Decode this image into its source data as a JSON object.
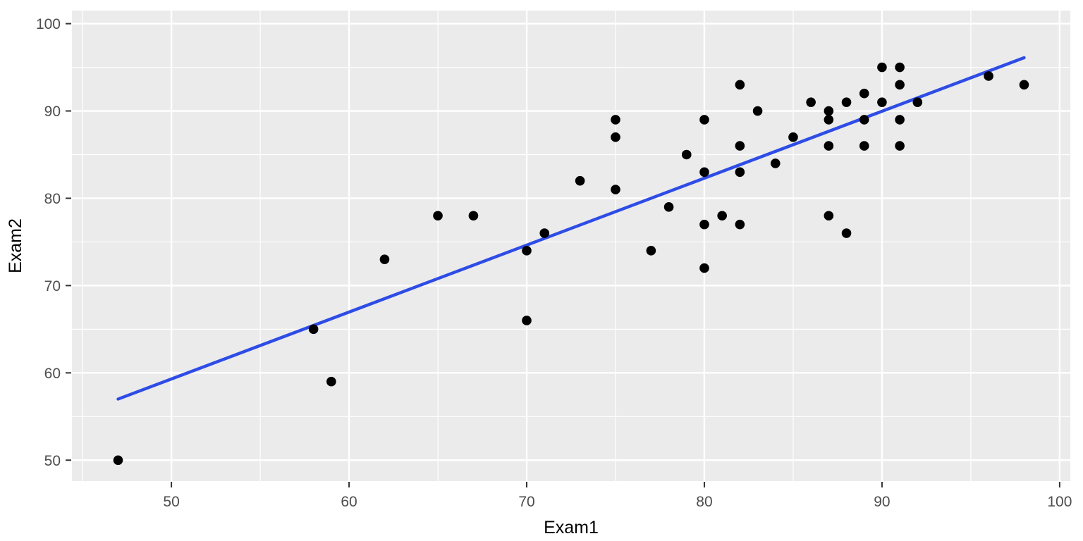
{
  "chart_data": {
    "type": "scatter",
    "title": "",
    "xlabel": "Exam1",
    "ylabel": "Exam2",
    "xlim": [
      44.4,
      100.6
    ],
    "ylim": [
      47.6,
      101.5
    ],
    "x_major_ticks": [
      50,
      60,
      70,
      80,
      90,
      100
    ],
    "y_major_ticks": [
      50,
      60,
      70,
      80,
      90,
      100
    ],
    "x_minor_ticks": [
      45,
      55,
      65,
      75,
      85,
      95
    ],
    "y_minor_ticks": [
      55,
      65,
      75,
      85,
      95
    ],
    "grid": "major-and-minor",
    "legend": "none",
    "points": [
      [
        47,
        50
      ],
      [
        58,
        65
      ],
      [
        59,
        59
      ],
      [
        62,
        73
      ],
      [
        65,
        78
      ],
      [
        67,
        78
      ],
      [
        70,
        66
      ],
      [
        70,
        74
      ],
      [
        71,
        76
      ],
      [
        73,
        82
      ],
      [
        75,
        81
      ],
      [
        75,
        87
      ],
      [
        75,
        89
      ],
      [
        77,
        74
      ],
      [
        78,
        79
      ],
      [
        79,
        85
      ],
      [
        80,
        72
      ],
      [
        80,
        77
      ],
      [
        80,
        83
      ],
      [
        80,
        89
      ],
      [
        81,
        78
      ],
      [
        82,
        77
      ],
      [
        82,
        83
      ],
      [
        82,
        86
      ],
      [
        82,
        93
      ],
      [
        83,
        90
      ],
      [
        84,
        84
      ],
      [
        85,
        87
      ],
      [
        86,
        91
      ],
      [
        87,
        78
      ],
      [
        87,
        86
      ],
      [
        87,
        89
      ],
      [
        87,
        90
      ],
      [
        88,
        76
      ],
      [
        88,
        91
      ],
      [
        89,
        86
      ],
      [
        89,
        89
      ],
      [
        89,
        92
      ],
      [
        90,
        91
      ],
      [
        90,
        95
      ],
      [
        91,
        86
      ],
      [
        91,
        89
      ],
      [
        91,
        93
      ],
      [
        91,
        95
      ],
      [
        92,
        91
      ],
      [
        96,
        94
      ],
      [
        98,
        93
      ]
    ],
    "trend_line": {
      "kind": "linear-fit",
      "x": [
        47,
        98
      ],
      "y": [
        57.0,
        96.1
      ]
    },
    "colors": {
      "panel_background": "#EBEBEB",
      "gridline": "#FFFFFF",
      "point": "#000000",
      "trend_line": "#2E4CE6",
      "tick_mark": "#333333",
      "tick_text": "#4D4D4D",
      "axis_title": "#000000"
    }
  }
}
